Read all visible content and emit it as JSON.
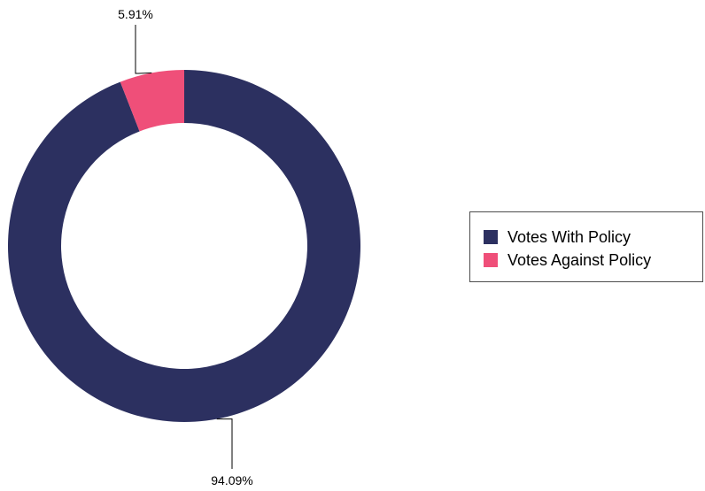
{
  "chart_data": {
    "type": "pie",
    "variant": "donut",
    "series": [
      {
        "name": "Votes With Policy",
        "value": 94.09,
        "label": "94.09%",
        "color": "#2c3060"
      },
      {
        "name": "Votes Against Policy",
        "value": 5.91,
        "label": "5.91%",
        "color": "#ef4f79"
      }
    ],
    "legend": {
      "position": "right",
      "items": [
        "Votes With Policy",
        "Votes Against Policy"
      ]
    }
  }
}
